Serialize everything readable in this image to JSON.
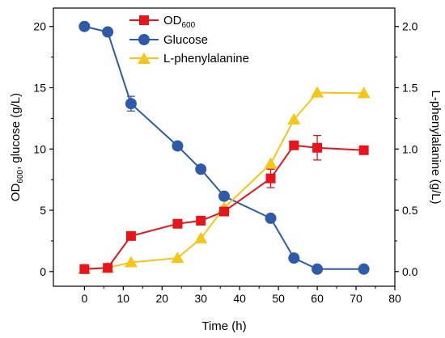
{
  "chart_data": {
    "type": "line",
    "xlabel": "Time (h)",
    "ylabel_left": {
      "main": "OD",
      "sub": "600",
      "rest": ", glucose (g/L)"
    },
    "ylabel_right": "L-phenylalanine (g/L)",
    "xlim": [
      -8,
      80
    ],
    "ylim_left": [
      -1.2,
      21.5
    ],
    "ylim_right": [
      -0.12,
      2.15
    ],
    "x_ticks": [
      0,
      10,
      20,
      30,
      40,
      50,
      60,
      70,
      80
    ],
    "y_left_ticks": [
      0,
      5,
      10,
      15,
      20
    ],
    "y_right_ticks": [
      "0.0",
      "0.5",
      "1.0",
      "1.5",
      "2.0"
    ],
    "legend_position": "top-center",
    "series": [
      {
        "key": "od",
        "name": "OD",
        "name_sub": "600",
        "axis": "left",
        "marker": "square",
        "color": "#e8141c",
        "x": [
          0,
          6,
          12,
          24,
          30,
          36,
          48,
          54,
          60,
          72
        ],
        "y": [
          0.2,
          0.3,
          2.9,
          3.9,
          4.15,
          4.9,
          7.6,
          10.3,
          10.1,
          9.9
        ],
        "err": [
          0,
          0,
          0,
          0,
          0,
          0,
          0.75,
          0,
          1.0,
          0
        ]
      },
      {
        "key": "glucose",
        "name": "Glucose",
        "axis": "left",
        "marker": "circle",
        "color": "#2e5aa8",
        "x": [
          0,
          6,
          12,
          24,
          30,
          36,
          48,
          54,
          60,
          72
        ],
        "y": [
          20.0,
          19.55,
          13.7,
          10.25,
          8.35,
          6.15,
          4.35,
          1.1,
          0.2,
          0.2
        ],
        "err": [
          0,
          0,
          0.6,
          0,
          0,
          0,
          0,
          0,
          0,
          0
        ]
      },
      {
        "key": "phe",
        "name": "L-phenylalanine",
        "axis": "right",
        "marker": "triangle",
        "color": "#f5c518",
        "x": [
          0,
          6,
          12,
          24,
          30,
          36,
          48,
          54,
          60,
          72
        ],
        "y": [
          0.02,
          0.03,
          0.075,
          0.11,
          0.27,
          0.52,
          0.88,
          1.24,
          1.46,
          1.455
        ],
        "err": [
          0,
          0,
          0,
          0,
          0,
          0,
          0,
          0,
          0,
          0
        ]
      }
    ]
  }
}
